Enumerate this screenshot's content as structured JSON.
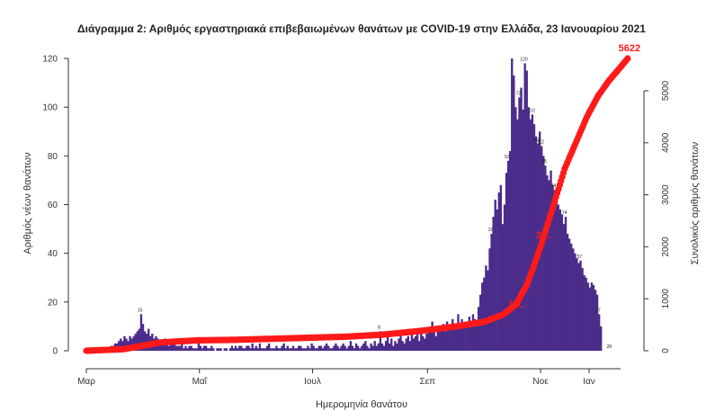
{
  "chart_data": {
    "type": "bar",
    "title": "Διάγραμμα 2: Αριθμός εργαστηριακά επιβεβαιωμένων θανάτων με COVID-19 στην Ελλάδα, 23 Ιανουαρίου 2021",
    "xlabel": "Ημερομηνία θανάτου",
    "ylabel": "Αριθμός νέων θανάτων",
    "y2label": "Συνολικός αριθμός θανάτων",
    "x_ticks": [
      "Μαρ",
      "Μαΐ",
      "Ιουλ",
      "Σεπ",
      "Νοε",
      "Ιαν"
    ],
    "ylim": [
      0,
      120
    ],
    "y_ticks": [
      "0",
      "20",
      "40",
      "60",
      "80",
      "100",
      "120"
    ],
    "y2lim": [
      0,
      5622
    ],
    "y2_ticks": [
      "0",
      "1000",
      "2000",
      "3000",
      "4000",
      "5000"
    ],
    "bar_color": "#4b2c8a",
    "cumulative_color": "#ff1a1a",
    "series": [
      {
        "name": "new",
        "kind": "bar",
        "daily_values": [
          0,
          0,
          0,
          0,
          0,
          0,
          0,
          0,
          0,
          0,
          0,
          1,
          1,
          2,
          2,
          3,
          3,
          4,
          5,
          4,
          6,
          5,
          4,
          6,
          5,
          6,
          7,
          8,
          9,
          15,
          11,
          8,
          7,
          9,
          6,
          7,
          5,
          6,
          5,
          4,
          4,
          3,
          5,
          3,
          2,
          4,
          3,
          3,
          2,
          2,
          2,
          3,
          1,
          2,
          1,
          2,
          2,
          1,
          1,
          1,
          3,
          2,
          1,
          2,
          2,
          1,
          1,
          2,
          1,
          0,
          1,
          1,
          1,
          0,
          1,
          1,
          0,
          1,
          2,
          1,
          2,
          1,
          2,
          2,
          1,
          1,
          2,
          2,
          1,
          3,
          1,
          2,
          1,
          3,
          1,
          1,
          1,
          2,
          3,
          1,
          1,
          1,
          2,
          1,
          1,
          2,
          3,
          1,
          2,
          1,
          1,
          2,
          1,
          1,
          2,
          2,
          1,
          1,
          1,
          2,
          1,
          3,
          2,
          1,
          1,
          2,
          2,
          1,
          2,
          3,
          2,
          1,
          1,
          2,
          3,
          2,
          1,
          2,
          3,
          2,
          1,
          2,
          4,
          2,
          1,
          3,
          2,
          1,
          2,
          3,
          4,
          2,
          1,
          3,
          2,
          4,
          2,
          3,
          8,
          3,
          2,
          4,
          6,
          3,
          5,
          2,
          4,
          3,
          5,
          7,
          4,
          3,
          5,
          6,
          4,
          8,
          5,
          6,
          7,
          4,
          9,
          6,
          5,
          7,
          9,
          8,
          12,
          9,
          6,
          10,
          8,
          9,
          11,
          8,
          12,
          10,
          9,
          13,
          10,
          11,
          15,
          9,
          13,
          11,
          10,
          12,
          14,
          12,
          15,
          13,
          12,
          18,
          23,
          28,
          30,
          35,
          33,
          42,
          48,
          55,
          62,
          58,
          65,
          68,
          52,
          60,
          73,
          78,
          82,
          120,
          113,
          100,
          95,
          104,
          108,
          99,
          118,
          115,
          100,
          95,
          97,
          93,
          88,
          85,
          90,
          84,
          80,
          76,
          72,
          70,
          74,
          68,
          66,
          63,
          60,
          58,
          56,
          52,
          55,
          48,
          46,
          44,
          42,
          40,
          38,
          36,
          37,
          34,
          31,
          30,
          28,
          26,
          28,
          27,
          25,
          23,
          15,
          10
        ],
        "labels": [
          {
            "text": "15",
            "day": 29
          },
          {
            "text": "8",
            "day": 158
          },
          {
            "text": "12",
            "day": 193
          },
          {
            "text": "19",
            "day": 218
          },
          {
            "text": "52",
            "day": 227
          },
          {
            "text": "73",
            "day": 233
          },
          {
            "text": "120",
            "day": 236
          },
          {
            "text": "110",
            "day": 240
          },
          {
            "text": "118",
            "day": 243
          },
          {
            "text": "112",
            "day": 245
          },
          {
            "text": "95",
            "day": 247
          },
          {
            "text": "84",
            "day": 252
          },
          {
            "text": "74",
            "day": 258
          },
          {
            "text": "57",
            "day": 266
          },
          {
            "text": "37",
            "day": 276
          },
          {
            "text": "28",
            "day": 282
          }
        ]
      },
      {
        "name": "cumulative",
        "kind": "line",
        "points": [
          [
            0,
            0
          ],
          [
            20,
            30
          ],
          [
            40,
            160
          ],
          [
            60,
            200
          ],
          [
            80,
            210
          ],
          [
            100,
            230
          ],
          [
            120,
            250
          ],
          [
            140,
            270
          ],
          [
            160,
            310
          ],
          [
            180,
            380
          ],
          [
            200,
            470
          ],
          [
            215,
            560
          ],
          [
            225,
            700
          ],
          [
            232,
            900
          ],
          [
            238,
            1300
          ],
          [
            245,
            2000
          ],
          [
            252,
            2800
          ],
          [
            258,
            3500
          ],
          [
            264,
            4000
          ],
          [
            270,
            4500
          ],
          [
            276,
            4900
          ],
          [
            282,
            5200
          ],
          [
            288,
            5450
          ],
          [
            292,
            5622
          ]
        ],
        "labels": [
          {
            "text": "13..",
            "day": 232
          },
          {
            "text": "28..",
            "day": 247
          },
          {
            "text": "5622",
            "day": 292
          }
        ]
      }
    ]
  }
}
